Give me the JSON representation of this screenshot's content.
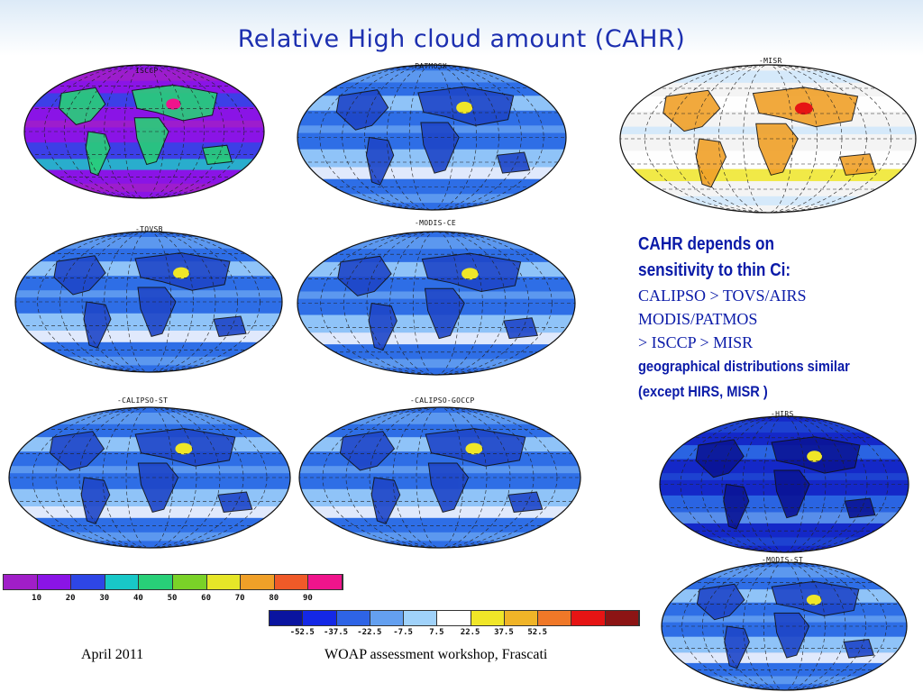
{
  "title": "Relative High cloud amount (CAHR)",
  "maps": [
    {
      "label": "ISCCP",
      "palette": "isccp"
    },
    {
      "label": "-PATMOSX",
      "palette": "blue"
    },
    {
      "label": "-MISR",
      "palette": "misr"
    },
    {
      "label": "-TOVSB",
      "palette": "blue"
    },
    {
      "label": "-MODIS-CE",
      "palette": "blue"
    },
    {
      "label": "-CALIPSO-ST",
      "palette": "blue"
    },
    {
      "label": "-CALIPSO-GOCCP",
      "palette": "blue"
    },
    {
      "label": "-HIRS",
      "palette": "dark"
    },
    {
      "label": "-MODIS-ST",
      "palette": "blue"
    }
  ],
  "notes": {
    "line1": "CAHR depends on",
    "line2": "sensitivity to thin Ci:",
    "line3": "CALIPSO > TOVS/AIRS",
    "line4": "MODIS/PATMOS",
    "line5": "> ISCCP > MISR",
    "line6": "geographical distributions similar",
    "line7": "(except HIRS, MISR )"
  },
  "scale1": {
    "colors": [
      "#a01ec8",
      "#8a14e6",
      "#2e46e6",
      "#18c8c8",
      "#28d078",
      "#7ad228",
      "#e6e628",
      "#f0a028",
      "#f05a28",
      "#f0148c"
    ],
    "ticks": [
      "10",
      "20",
      "30",
      "40",
      "50",
      "60",
      "70",
      "80",
      "90"
    ]
  },
  "scale2": {
    "colors": [
      "#0a14a0",
      "#1428e6",
      "#2e64e6",
      "#64a0f0",
      "#a0d2fa",
      "#ffffff",
      "#f0e628",
      "#f0b428",
      "#f07828",
      "#e61414",
      "#8c1414"
    ],
    "ticks": [
      "-52.5",
      "-37.5",
      "-22.5",
      "-7.5",
      "7.5",
      "22.5",
      "37.5",
      "52.5"
    ]
  },
  "footer": {
    "left": "April 2011",
    "center": "WOAP assessment workshop, Frascati"
  }
}
